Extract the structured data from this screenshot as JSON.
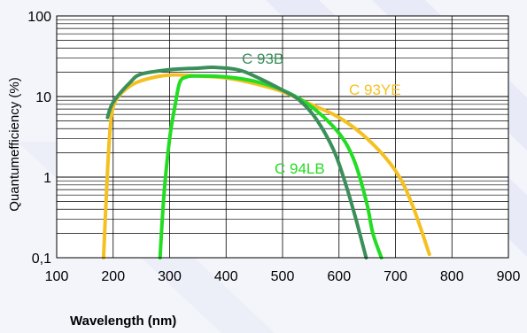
{
  "chart_data": {
    "type": "line",
    "title": "",
    "xlabel": "Wavelength (nm)",
    "ylabel": "Quantumefficiency (%)",
    "xlim": [
      100,
      900
    ],
    "ylim": [
      0.1,
      100
    ],
    "yscale": "log",
    "grid": true,
    "x_ticks": [
      "100",
      "200",
      "300",
      "400",
      "500",
      "600",
      "700",
      "800",
      "900"
    ],
    "y_ticks": [
      "0,1",
      "1",
      "10",
      "100"
    ],
    "series": [
      {
        "name": "C 93B",
        "color": "#3a8f5a",
        "x": [
          190,
          200,
          230,
          250,
          300,
          350,
          380,
          420,
          450,
          500,
          530,
          560,
          590,
          610,
          630,
          648
        ],
        "y": [
          5.5,
          8.5,
          15,
          19,
          21.5,
          22.5,
          23,
          21.5,
          18,
          12,
          9,
          5.2,
          2.2,
          0.9,
          0.3,
          0.1
        ]
      },
      {
        "name": "C 94LB",
        "color": "#22dd22",
        "x": [
          283,
          290,
          300,
          310,
          318,
          330,
          350,
          400,
          450,
          500,
          540,
          580,
          610,
          630,
          650,
          660,
          675
        ],
        "y": [
          0.1,
          0.6,
          3,
          8,
          15,
          17.5,
          18,
          17.5,
          15.5,
          12,
          8.5,
          5,
          2.8,
          1.4,
          0.45,
          0.2,
          0.1
        ]
      },
      {
        "name": "C 93YE",
        "color": "#f5c022",
        "x": [
          183,
          190,
          196,
          205,
          230,
          260,
          300,
          350,
          400,
          450,
          500,
          550,
          600,
          650,
          700,
          730,
          760
        ],
        "y": [
          0.1,
          1.2,
          5,
          9,
          13.5,
          16.5,
          18.5,
          18,
          17,
          14.5,
          11.5,
          8,
          5.5,
          3,
          1.2,
          0.45,
          0.11
        ]
      }
    ]
  }
}
